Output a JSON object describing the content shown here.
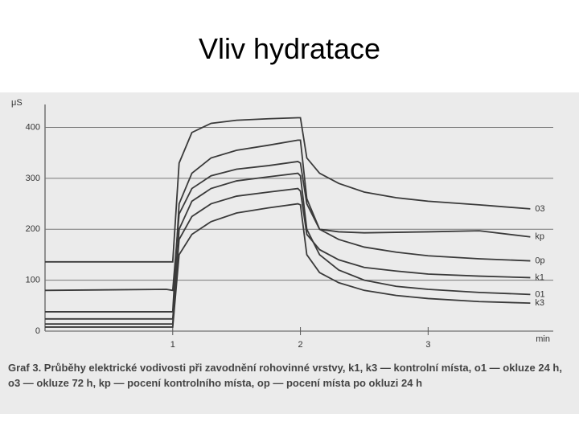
{
  "chart_data": {
    "type": "line",
    "title": "Vliv hydratace",
    "y_label": "μS",
    "x_label": "min",
    "x": [
      0,
      0.95,
      1,
      1.05,
      1.15,
      1.3,
      1.5,
      1.75,
      1.98,
      2,
      2.05,
      2.15,
      2.3,
      2.5,
      2.75,
      3,
      3.4,
      3.8
    ],
    "series": [
      {
        "name": "03",
        "color": "#3a3a3a",
        "values": [
          136,
          136,
          136,
          330,
          390,
          408,
          414,
          417,
          419,
          419,
          340,
          310,
          290,
          273,
          262,
          255,
          248,
          240
        ]
      },
      {
        "name": "0p",
        "color": "#3a3a3a",
        "values": [
          38,
          38,
          38,
          250,
          310,
          340,
          355,
          365,
          375,
          375,
          260,
          200,
          180,
          165,
          155,
          148,
          142,
          138
        ]
      },
      {
        "name": "kp",
        "color": "#3a3a3a",
        "values": [
          80,
          82,
          80,
          230,
          280,
          305,
          318,
          325,
          333,
          330,
          250,
          200,
          195,
          193,
          194,
          195,
          197,
          185
        ]
      },
      {
        "name": "01",
        "color": "#3a3a3a",
        "values": [
          14,
          14,
          14,
          200,
          255,
          280,
          295,
          303,
          310,
          305,
          200,
          150,
          120,
          100,
          88,
          82,
          76,
          72
        ]
      },
      {
        "name": "k1",
        "color": "#3a3a3a",
        "values": [
          24,
          24,
          24,
          180,
          225,
          250,
          265,
          273,
          280,
          275,
          190,
          160,
          140,
          125,
          118,
          112,
          108,
          105
        ]
      },
      {
        "name": "k3",
        "color": "#3a3a3a",
        "values": [
          8,
          8,
          8,
          150,
          190,
          215,
          232,
          242,
          250,
          248,
          150,
          115,
          95,
          80,
          70,
          64,
          58,
          55
        ]
      }
    ],
    "xlim": [
      0,
      3.98
    ],
    "xticks": [
      1,
      2,
      3
    ],
    "ylim": [
      0,
      445
    ],
    "yticks": [
      0,
      100,
      200,
      300,
      400
    ],
    "grid": true,
    "caption": "Graf 3. Průběhy elektrické vodivosti při zavodnění rohovinné vrstvy, k1, k3 — kontrolní místa, o1 — okluze 24 h, o3 — okluze 72 h, kp — pocení kontrolního místa, op — pocení místa po okluzi 24 h"
  }
}
